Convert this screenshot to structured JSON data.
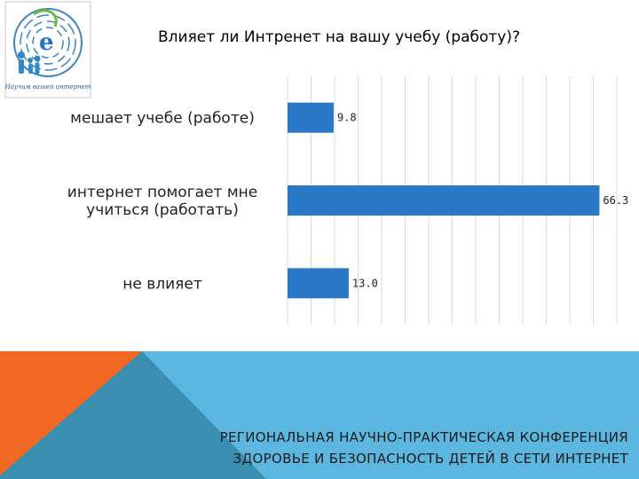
{
  "logo": {
    "caption": "Научим вашей интернет"
  },
  "chart_data": {
    "type": "bar",
    "orientation": "horizontal",
    "title": "Влияет ли Интренет на вашу учебу (работу)?",
    "categories": [
      [
        "мешает учебе (работе)"
      ],
      [
        "интернет помогает мне",
        "учиться (работать)"
      ],
      [
        "не влияет"
      ]
    ],
    "values": [
      9.8,
      66.3,
      13.0
    ],
    "value_labels": [
      "9.8",
      "66.3",
      "13.0"
    ],
    "xlim": [
      0,
      70
    ],
    "grid": true,
    "legend": "none",
    "colors": {
      "bar": "#2a78c8",
      "grid": "#d9d9d9"
    }
  },
  "footer": {
    "line1": "РЕГИОНАЛЬНАЯ НАУЧНО-ПРАКТИЧЕСКАЯ КОНФЕРЕНЦИЯ",
    "line2": "ЗДОРОВЬЕ И БЕЗОПАСНОСТЬ ДЕТЕЙ В СЕТИ ИНТЕРНЕТ",
    "colors": {
      "orange": "#f26722",
      "teal": "#3a8fb0",
      "light": "#5bb7e0"
    }
  }
}
